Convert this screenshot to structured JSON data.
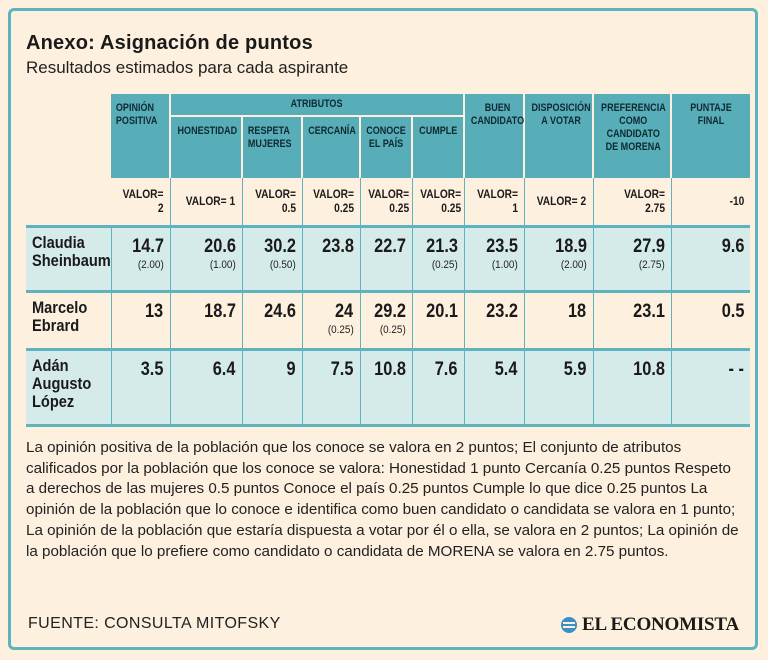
{
  "header": {
    "title": "Anexo: Asignación de puntos",
    "subtitle": "Resultados estimados para cada aspirante"
  },
  "chart_data": {
    "type": "table",
    "title": "Anexo: Asignación de puntos",
    "subtitle": "Resultados estimados para cada aspirante",
    "group_header": "ATRIBUTOS",
    "columns": [
      "OPINIÓN POSITIVA",
      "HONESTIDAD",
      "RESPETA MUJERES",
      "CERCANÍA",
      "CONOCE EL PAÍS",
      "CUMPLE",
      "BUEN CANDIDATO",
      "DISPOSICIÓN A VOTAR",
      "PREFERENCIA COMO CANDIDATO DE MORENA",
      "PUNTAJE FINAL"
    ],
    "weights": [
      "VALOR= 2",
      "VALOR= 1",
      "VALOR= 0.5",
      "VALOR= 0.25",
      "VALOR= 0.25",
      "VALOR= 0.25",
      "VALOR= 1",
      "VALOR= 2",
      "VALOR= 2.75",
      "-10"
    ],
    "rows": [
      {
        "name": "Claudia Sheinbaum",
        "values": [
          "14.7",
          "20.6",
          "30.2",
          "23.8",
          "22.7",
          "21.3",
          "23.5",
          "18.9",
          "27.9",
          "9.6"
        ],
        "subs": [
          "(2.00)",
          "(1.00)",
          "(0.50)",
          "",
          "",
          "(0.25)",
          "(1.00)",
          "(2.00)",
          "(2.75)",
          ""
        ]
      },
      {
        "name": "Marcelo Ebrard",
        "values": [
          "13",
          "18.7",
          "24.6",
          "24",
          "29.2",
          "20.1",
          "23.2",
          "18",
          "23.1",
          "0.5"
        ],
        "subs": [
          "",
          "",
          "",
          "(0.25)",
          "(0.25)",
          "",
          "",
          "",
          "",
          ""
        ]
      },
      {
        "name": "Adán Augusto López",
        "values": [
          "3.5",
          "6.4",
          "9",
          "7.5",
          "10.8",
          "7.6",
          "5.4",
          "5.9",
          "10.8",
          "- -"
        ],
        "subs": [
          "",
          "",
          "",
          "",
          "",
          "",
          "",
          "",
          "",
          ""
        ]
      }
    ]
  },
  "note": "La opinión positiva de la población que los conoce se valora en 2 puntos; El conjunto de atributos calificados por la población que los conoce se valora: Honestidad 1 punto Cercanía 0.25 puntos Respeto a derechos de las mujeres 0.5 puntos Conoce el país 0.25 puntos Cumple lo que dice 0.25 puntos La opinión de la población que lo conoce e identifica como buen candidato o candidata se valora en 1 punto; La opinión de la población que estaría dispuesta a votar por él o ella, se valora en 2 puntos; La opinión de la población que lo prefiere como candidato o candidata de MORENA se valora en 2.75 puntos.",
  "footer": {
    "source": "FUENTE: CONSULTA MITOFSKY",
    "logo_text": "EL ECONOMISTA"
  },
  "colors": {
    "accent": "#5eb3bf",
    "header_fill": "#57adb8",
    "row_shade": "#d5ebea",
    "background": "#fdf0df"
  }
}
